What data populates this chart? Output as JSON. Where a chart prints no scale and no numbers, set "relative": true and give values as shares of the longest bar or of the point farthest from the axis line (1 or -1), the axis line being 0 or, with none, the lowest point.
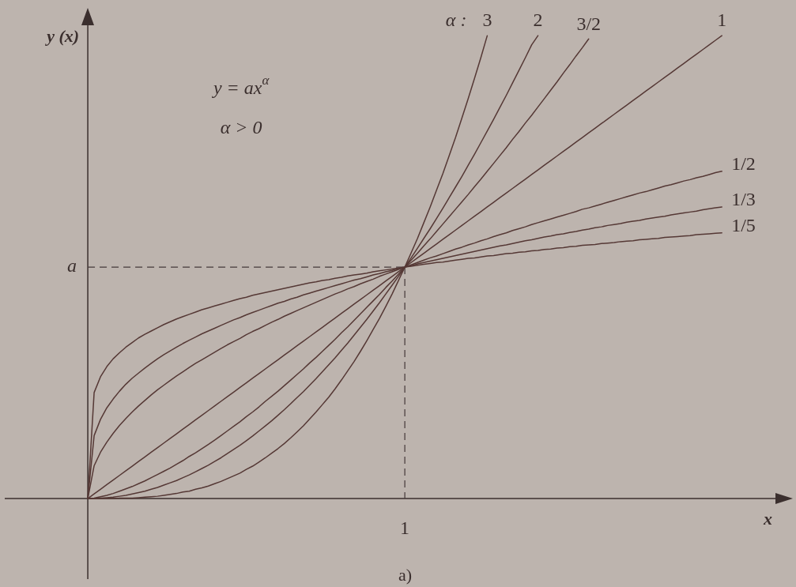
{
  "chart_data": {
    "type": "line",
    "relative": true,
    "xlabel": "x",
    "ylabel": "y (x)",
    "legend_title": "α :",
    "annotations": [
      "y = ax$^{α}$",
      "α > 0",
      "1",
      "a)"
    ],
    "categories": [
      null,
      null,
      null,
      null,
      null,
      null,
      null,
      null,
      null,
      null,
      null,
      null,
      null,
      null,
      null,
      null,
      null,
      null,
      null,
      null,
      null,
      null,
      null,
      null,
      null,
      null,
      null,
      null,
      null,
      null,
      null,
      null,
      null,
      null,
      null,
      null,
      null,
      null,
      null,
      null,
      null,
      null,
      null,
      null,
      null,
      null,
      null,
      null,
      null,
      null,
      null,
      null,
      null,
      null,
      null,
      null,
      null,
      null,
      null,
      null,
      null,
      null,
      null,
      null,
      null,
      null,
      null,
      null,
      null,
      null,
      null,
      null,
      null,
      null,
      null,
      null,
      null,
      null,
      null,
      null,
      null,
      null,
      null,
      null,
      null,
      null,
      null,
      null,
      null,
      null,
      null,
      null,
      null,
      null,
      null,
      null,
      null,
      null,
      null,
      null,
      null
    ],
    "ref_lines": [
      {
        "axis": "y",
        "value": 0.5,
        "label": "a",
        "line_style": "dashed",
        "color": "#45393a"
      }
    ],
    "marker": "none",
    "line_style": "solid",
    "series": [
      {
        "name": "3",
        "color": "#553835",
        "values": [
          0,
          0,
          0,
          0,
          0,
          0.001,
          0.001,
          0.001,
          0.002,
          0.003,
          0.004,
          0.005,
          0.007,
          0.009,
          0.011,
          0.014,
          0.016,
          0.02,
          0.023,
          0.027,
          0.032,
          0.037,
          0.043,
          0.049,
          0.055,
          0.063,
          0.07,
          0.079,
          0.088,
          0.098,
          0.108,
          0.119,
          0.131,
          0.144,
          0.157,
          0.172,
          0.187,
          0.203,
          0.219,
          0.237,
          0.256,
          0.276,
          0.296,
          0.318,
          0.341,
          0.365,
          0.389,
          0.415,
          0.442,
          0.471,
          0.5,
          0.531,
          0.562,
          0.596,
          0.63,
          0.666,
          0.702,
          0.741,
          0.78,
          0.822,
          0.864,
          0.908,
          0.953,
          1,
          null,
          null,
          null,
          null,
          null,
          null,
          null,
          null,
          null,
          null,
          null,
          null,
          null,
          null,
          null,
          null,
          null,
          null,
          null,
          null,
          null,
          null,
          null,
          null,
          null,
          null,
          null,
          null,
          null,
          null,
          null,
          null,
          null,
          null,
          null,
          null,
          null
        ]
      },
      {
        "name": "2",
        "color": "#553835",
        "values": [
          0,
          0,
          0.001,
          0.002,
          0.003,
          0.005,
          0.007,
          0.01,
          0.013,
          0.016,
          0.02,
          0.024,
          0.029,
          0.034,
          0.039,
          0.045,
          0.051,
          0.058,
          0.065,
          0.072,
          0.08,
          0.088,
          0.097,
          0.106,
          0.115,
          0.125,
          0.135,
          0.146,
          0.157,
          0.168,
          0.18,
          0.192,
          0.205,
          0.218,
          0.231,
          0.245,
          0.259,
          0.274,
          0.289,
          0.304,
          0.32,
          0.336,
          0.353,
          0.37,
          0.387,
          0.405,
          0.423,
          0.442,
          0.461,
          0.48,
          0.5,
          0.52,
          0.541,
          0.562,
          0.583,
          0.605,
          0.627,
          0.65,
          0.673,
          0.696,
          0.72,
          0.744,
          0.769,
          0.794,
          0.819,
          0.845,
          0.871,
          0.898,
          0.925,
          0.952,
          0.98,
          1,
          null,
          null,
          null,
          null,
          null,
          null,
          null,
          null,
          null,
          null,
          null,
          null,
          null,
          null,
          null,
          null,
          null,
          null,
          null,
          null,
          null,
          null,
          null,
          null,
          null,
          null,
          null,
          null,
          null
        ]
      },
      {
        "name": "3/2",
        "color": "#553835",
        "values": [
          0,
          0.001,
          0.004,
          0.007,
          0.011,
          0.016,
          0.021,
          0.026,
          0.032,
          0.038,
          0.045,
          0.052,
          0.059,
          0.066,
          0.074,
          0.082,
          0.091,
          0.099,
          0.108,
          0.117,
          0.126,
          0.136,
          0.146,
          0.156,
          0.166,
          0.177,
          0.187,
          0.198,
          0.21,
          0.221,
          0.232,
          0.244,
          0.256,
          0.268,
          0.28,
          0.293,
          0.305,
          0.318,
          0.331,
          0.344,
          0.358,
          0.371,
          0.385,
          0.399,
          0.413,
          0.427,
          0.441,
          0.456,
          0.47,
          0.485,
          0.5,
          0.515,
          0.53,
          0.546,
          0.561,
          0.577,
          0.593,
          0.609,
          0.625,
          0.641,
          0.657,
          0.674,
          0.69,
          0.707,
          0.724,
          0.741,
          0.758,
          0.776,
          0.793,
          0.811,
          0.828,
          0.846,
          0.864,
          0.882,
          0.9,
          0.919,
          0.937,
          0.956,
          0.974,
          0.993,
          null,
          null,
          null,
          null,
          null,
          null,
          null,
          null,
          null,
          null,
          null,
          null,
          null,
          null,
          null,
          null,
          null,
          null,
          null,
          null,
          null
        ]
      },
      {
        "name": "1",
        "color": "#553835",
        "values": [
          0,
          0.01,
          0.02,
          0.03,
          0.04,
          0.05,
          0.06,
          0.07,
          0.08,
          0.09,
          0.1,
          0.11,
          0.12,
          0.13,
          0.14,
          0.15,
          0.16,
          0.17,
          0.18,
          0.19,
          0.2,
          0.21,
          0.22,
          0.23,
          0.24,
          0.25,
          0.26,
          0.27,
          0.28,
          0.29,
          0.3,
          0.31,
          0.32,
          0.33,
          0.34,
          0.35,
          0.36,
          0.37,
          0.38,
          0.39,
          0.4,
          0.41,
          0.42,
          0.43,
          0.44,
          0.45,
          0.46,
          0.47,
          0.48,
          0.49,
          0.5,
          0.51,
          0.52,
          0.53,
          0.54,
          0.55,
          0.56,
          0.57,
          0.58,
          0.59,
          0.6,
          0.61,
          0.62,
          0.63,
          0.64,
          0.65,
          0.66,
          0.67,
          0.68,
          0.69,
          0.7,
          0.71,
          0.72,
          0.73,
          0.74,
          0.75,
          0.76,
          0.77,
          0.78,
          0.79,
          0.8,
          0.81,
          0.82,
          0.83,
          0.84,
          0.85,
          0.86,
          0.87,
          0.88,
          0.89,
          0.9,
          0.91,
          0.92,
          0.93,
          0.94,
          0.95,
          0.96,
          0.97,
          0.98,
          0.99,
          1
        ]
      },
      {
        "name": "1/2",
        "color": "#553835",
        "values": [
          0,
          0.071,
          0.1,
          0.122,
          0.141,
          0.158,
          0.173,
          0.187,
          0.2,
          0.212,
          0.224,
          0.235,
          0.245,
          0.255,
          0.265,
          0.274,
          0.283,
          0.292,
          0.3,
          0.308,
          0.316,
          0.324,
          0.332,
          0.339,
          0.346,
          0.354,
          0.361,
          0.367,
          0.374,
          0.381,
          0.387,
          0.394,
          0.4,
          0.406,
          0.412,
          0.418,
          0.424,
          0.43,
          0.436,
          0.442,
          0.447,
          0.453,
          0.458,
          0.464,
          0.469,
          0.474,
          0.48,
          0.485,
          0.49,
          0.495,
          0.5,
          0.505,
          0.51,
          0.515,
          0.52,
          0.524,
          0.529,
          0.534,
          0.539,
          0.543,
          0.548,
          0.552,
          0.557,
          0.561,
          0.566,
          0.57,
          0.574,
          0.579,
          0.583,
          0.587,
          0.592,
          0.596,
          0.6,
          0.604,
          0.608,
          0.612,
          0.616,
          0.62,
          0.625,
          0.628,
          0.632,
          0.636,
          0.64,
          0.644,
          0.648,
          0.652,
          0.656,
          0.66,
          0.663,
          0.667,
          0.671,
          0.675,
          0.678,
          0.682,
          0.686,
          0.689,
          0.693,
          0.696,
          0.7,
          0.704,
          0.707
        ]
      },
      {
        "name": "1/3",
        "color": "#553835",
        "values": [
          0,
          0.136,
          0.171,
          0.196,
          0.215,
          0.232,
          0.247,
          0.26,
          0.271,
          0.282,
          0.292,
          0.302,
          0.311,
          0.319,
          0.327,
          0.335,
          0.342,
          0.349,
          0.356,
          0.362,
          0.368,
          0.374,
          0.38,
          0.386,
          0.391,
          0.397,
          0.402,
          0.407,
          0.412,
          0.417,
          0.422,
          0.426,
          0.431,
          0.435,
          0.44,
          0.444,
          0.448,
          0.452,
          0.456,
          0.46,
          0.464,
          0.468,
          0.472,
          0.475,
          0.479,
          0.483,
          0.486,
          0.49,
          0.493,
          0.497,
          0.5,
          0.503,
          0.507,
          0.51,
          0.513,
          0.516,
          0.519,
          0.522,
          0.525,
          0.528,
          0.531,
          0.534,
          0.537,
          0.54,
          0.543,
          0.546,
          0.548,
          0.551,
          0.554,
          0.557,
          0.559,
          0.562,
          0.565,
          0.567,
          0.57,
          0.572,
          0.575,
          0.577,
          0.58,
          0.582,
          0.585,
          0.587,
          0.59,
          0.592,
          0.594,
          0.597,
          0.599,
          0.601,
          0.604,
          0.606,
          0.608,
          0.61,
          0.613,
          0.615,
          0.617,
          0.619,
          0.621,
          0.624,
          0.626,
          0.628,
          0.63
        ]
      },
      {
        "name": "1/5",
        "color": "#553835",
        "values": [
          0,
          0.229,
          0.263,
          0.285,
          0.302,
          0.315,
          0.327,
          0.337,
          0.347,
          0.355,
          0.362,
          0.369,
          0.376,
          0.382,
          0.388,
          0.393,
          0.398,
          0.403,
          0.408,
          0.412,
          0.416,
          0.42,
          0.424,
          0.428,
          0.432,
          0.435,
          0.439,
          0.442,
          0.445,
          0.448,
          0.451,
          0.454,
          0.457,
          0.46,
          0.463,
          0.466,
          0.468,
          0.471,
          0.473,
          0.476,
          0.478,
          0.481,
          0.483,
          0.485,
          0.487,
          0.49,
          0.492,
          0.494,
          0.496,
          0.498,
          0.5,
          0.502,
          0.504,
          0.506,
          0.508,
          0.51,
          0.511,
          0.513,
          0.515,
          0.517,
          0.519,
          0.52,
          0.522,
          0.524,
          0.525,
          0.527,
          0.529,
          0.53,
          0.532,
          0.533,
          0.535,
          0.536,
          0.538,
          0.539,
          0.541,
          0.542,
          0.544,
          0.545,
          0.547,
          0.548,
          0.549,
          0.551,
          0.552,
          0.553,
          0.555,
          0.556,
          0.557,
          0.559,
          0.56,
          0.561,
          0.562,
          0.564,
          0.565,
          0.566,
          0.567,
          0.568,
          0.57,
          0.571,
          0.572,
          0.573,
          0.574
        ]
      }
    ]
  }
}
